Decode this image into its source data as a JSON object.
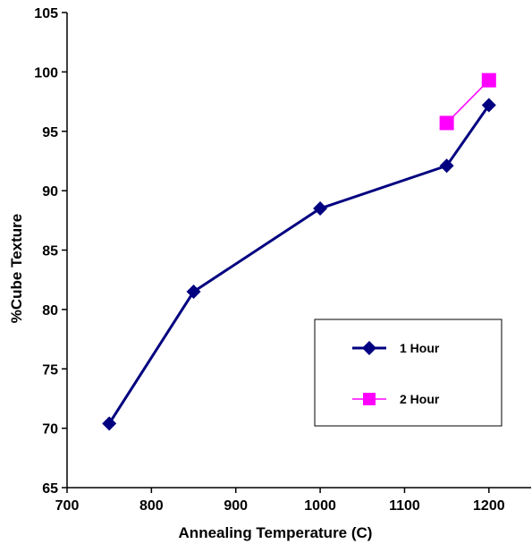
{
  "chart_data": {
    "type": "line",
    "title": "",
    "xlabel": "Annealing Temperature (C)",
    "ylabel": "%Cube Texture",
    "xlim": [
      700,
      1250
    ],
    "ylim": [
      65,
      105
    ],
    "x_ticks": [
      700,
      800,
      900,
      1000,
      1100,
      1200
    ],
    "y_ticks": [
      65,
      70,
      75,
      80,
      85,
      90,
      95,
      100,
      105
    ],
    "grid": false,
    "legend_position": "bottom-right",
    "series": [
      {
        "name": "1 Hour",
        "color": "#000080",
        "marker": "diamond",
        "x": [
          750,
          850,
          1000,
          1150,
          1200
        ],
        "y": [
          70.4,
          81.5,
          88.5,
          92.1,
          97.2
        ]
      },
      {
        "name": "2 Hour",
        "color": "#ff00ff",
        "marker": "square",
        "x": [
          1150,
          1200
        ],
        "y": [
          95.7,
          99.3
        ]
      }
    ]
  }
}
